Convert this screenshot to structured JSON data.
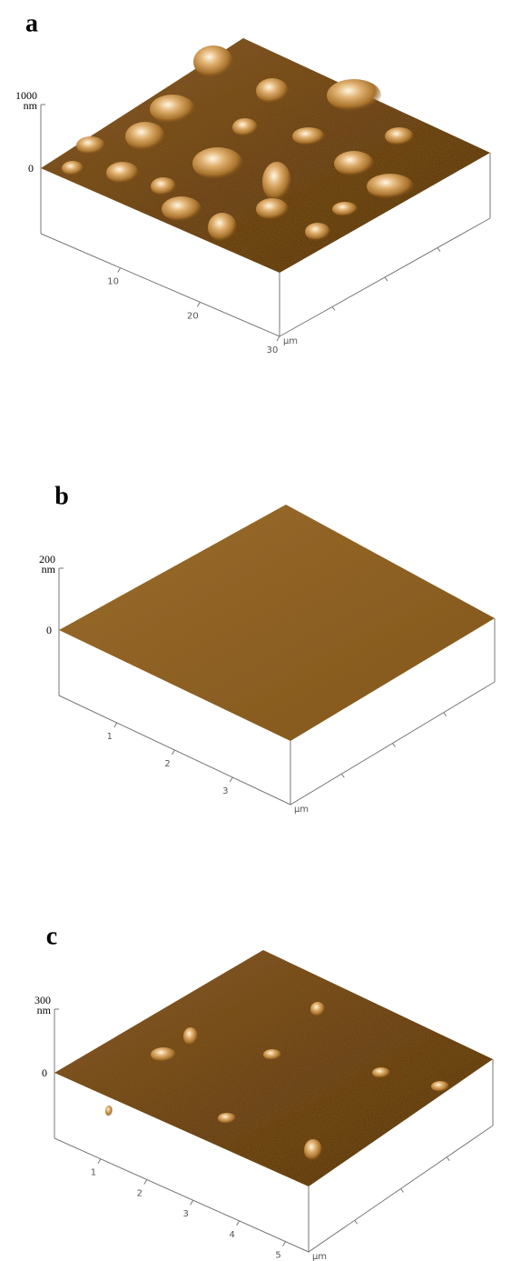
{
  "panels": [
    {
      "label": "a",
      "z_max": "1000",
      "z_unit": "nm",
      "z_zero": "0",
      "x_ticks": [
        "10",
        "20",
        "30"
      ],
      "x_unit": "µm"
    },
    {
      "label": "b",
      "z_max": "200",
      "z_unit": "nm",
      "z_zero": "0",
      "x_ticks": [
        "1",
        "2",
        "3"
      ],
      "x_unit": "µm"
    },
    {
      "label": "c",
      "z_max": "300",
      "z_unit": "nm",
      "z_zero": "0",
      "x_ticks": [
        "1",
        "2",
        "3",
        "4",
        "5"
      ],
      "x_unit": "µm"
    }
  ]
}
